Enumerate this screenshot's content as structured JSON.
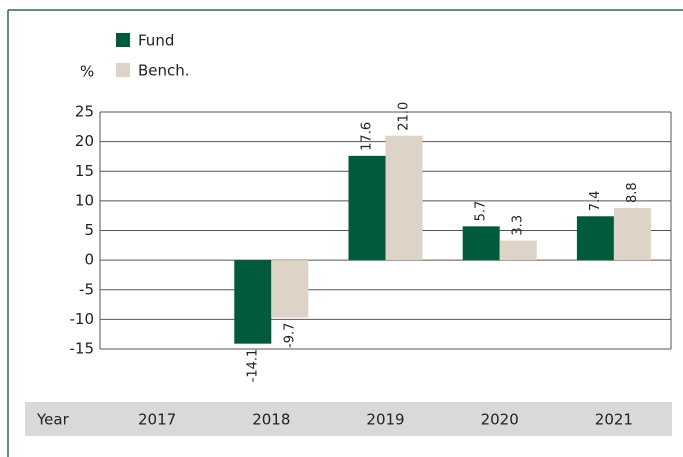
{
  "chart_data": {
    "type": "bar",
    "y_label": "%",
    "x_label": "Year",
    "categories": [
      "2017",
      "2018",
      "2019",
      "2020",
      "2021"
    ],
    "series": [
      {
        "name": "Fund",
        "color": "#005a3c",
        "values": [
          null,
          -14.1,
          17.6,
          5.7,
          7.4
        ],
        "value_labels": [
          null,
          "-14.1",
          "17.6",
          "5.7",
          "7.4"
        ]
      },
      {
        "name": "Bench.",
        "color": "#ddd3c6",
        "values": [
          null,
          -9.7,
          21.0,
          3.3,
          8.8
        ],
        "value_labels": [
          null,
          "-9.7",
          "21.0",
          "3.3",
          "8.8"
        ]
      }
    ],
    "ylim": [
      -15,
      25
    ],
    "yticks": [
      -15,
      -10,
      -5,
      0,
      5,
      10,
      15,
      20,
      25
    ],
    "grid": true
  }
}
